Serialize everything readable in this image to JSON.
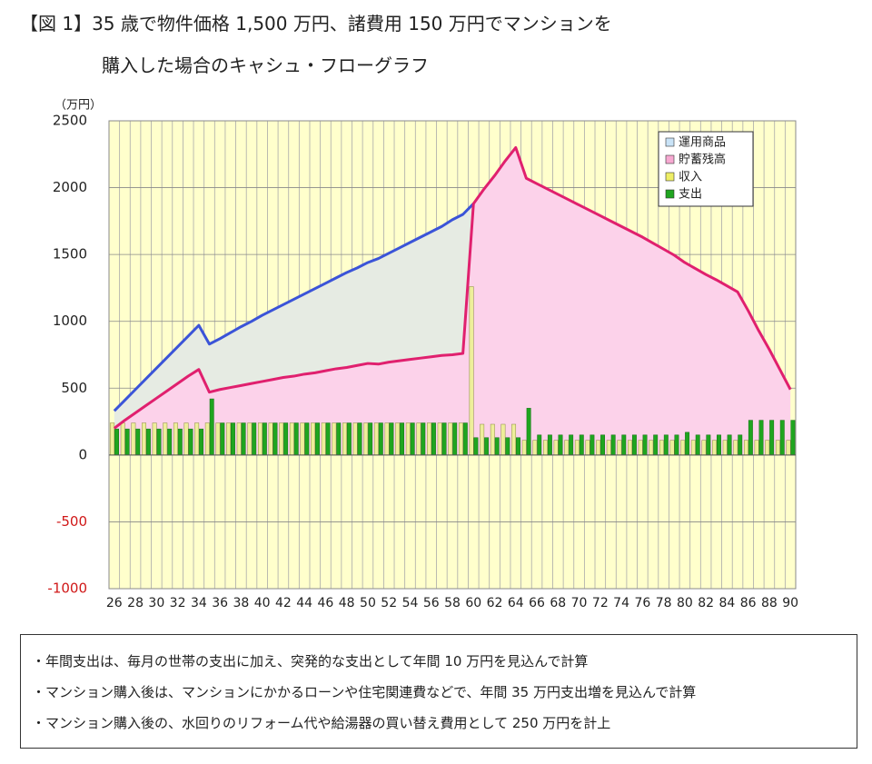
{
  "chart_data": {
    "type": "combo",
    "title": "【図 1】35 歳で物件価格 1,500 万円、諸費用 150 万円でマンションを",
    "subtitle": "購入した場合のキャシュ・フローグラフ",
    "y_label": "（万円）",
    "categories": [
      26,
      null,
      28,
      null,
      30,
      null,
      32,
      null,
      34,
      null,
      36,
      null,
      38,
      null,
      40,
      null,
      42,
      null,
      44,
      null,
      46,
      null,
      48,
      null,
      50,
      null,
      52,
      null,
      54,
      null,
      56,
      null,
      58,
      null,
      60,
      null,
      62,
      null,
      64,
      null,
      66,
      null,
      68,
      null,
      70,
      null,
      72,
      null,
      74,
      null,
      76,
      null,
      78,
      null,
      80,
      null,
      82,
      null,
      84,
      null,
      86,
      null,
      88,
      null,
      90
    ],
    "series": [
      {
        "name": "運用商品",
        "type": "line",
        "color": "#3b54d8",
        "fill": "#e6ebe3",
        "legend_color": "#c9e3f7",
        "values": [
          330,
          410,
          490,
          570,
          650,
          730,
          810,
          890,
          970,
          830,
          870,
          915,
          960,
          1000,
          1045,
          1085,
          1125,
          1165,
          1205,
          1245,
          1285,
          1325,
          1365,
          1400,
          1440,
          1470,
          1510,
          1550,
          1590,
          1630,
          1670,
          1710,
          1760,
          1800,
          1880,
          null,
          null,
          null,
          null,
          null,
          null,
          null,
          null,
          null,
          null,
          null,
          null,
          null,
          null,
          null,
          null,
          null,
          null,
          null,
          null,
          null,
          null,
          null,
          null,
          null,
          null,
          null,
          null,
          null,
          null
        ]
      },
      {
        "name": "貯蓄残高",
        "type": "line",
        "color": "#e0206e",
        "fill": "#fcd2ea",
        "legend_color": "#f7a9d2",
        "values": [
          200,
          260,
          315,
          370,
          425,
          480,
          535,
          590,
          640,
          470,
          490,
          505,
          520,
          535,
          550,
          565,
          580,
          590,
          605,
          615,
          630,
          645,
          655,
          670,
          685,
          680,
          695,
          705,
          715,
          725,
          735,
          745,
          750,
          760,
          1880,
          1990,
          2090,
          2200,
          2300,
          2070,
          2030,
          1990,
          1950,
          1910,
          1870,
          1830,
          1790,
          1750,
          1710,
          1670,
          1630,
          1585,
          1540,
          1495,
          1440,
          1395,
          1350,
          1310,
          1265,
          1220,
          1080,
          930,
          790,
          640,
          490
        ]
      },
      {
        "name": "収入",
        "type": "bar",
        "color": "#eeee9a",
        "legend_color": "#eeee66",
        "values": [
          240,
          240,
          240,
          240,
          240,
          240,
          240,
          240,
          240,
          240,
          240,
          240,
          240,
          240,
          240,
          240,
          240,
          240,
          240,
          240,
          240,
          240,
          240,
          240,
          240,
          240,
          240,
          240,
          240,
          240,
          240,
          240,
          240,
          240,
          1260,
          230,
          230,
          230,
          230,
          110,
          110,
          110,
          110,
          110,
          110,
          110,
          110,
          110,
          110,
          110,
          110,
          110,
          110,
          110,
          110,
          110,
          110,
          110,
          110,
          110,
          110,
          110,
          110,
          110,
          110
        ]
      },
      {
        "name": "支出",
        "type": "bar",
        "color": "#1fa51f",
        "legend_color": "#1fa51f",
        "values": [
          195,
          195,
          195,
          195,
          195,
          195,
          195,
          195,
          195,
          420,
          240,
          240,
          240,
          240,
          240,
          240,
          240,
          240,
          240,
          240,
          240,
          240,
          240,
          240,
          240,
          240,
          240,
          240,
          240,
          240,
          240,
          240,
          240,
          240,
          130,
          130,
          130,
          130,
          130,
          350,
          150,
          150,
          150,
          150,
          150,
          150,
          150,
          150,
          150,
          150,
          150,
          150,
          150,
          150,
          170,
          150,
          150,
          150,
          150,
          150,
          260,
          260,
          260,
          260,
          260
        ]
      }
    ],
    "ylim": [
      -1000,
      2500
    ],
    "yticks": [
      -1000,
      -500,
      0,
      500,
      1000,
      1500,
      2000,
      2500
    ],
    "negative_tick_color": "#d01818",
    "plot_background": "#ffffcc",
    "grid": true,
    "legend_position": "upper right"
  },
  "notes": [
    "・年間支出は、毎月の世帯の支出に加え、突発的な支出として年間 10 万円を見込んで計算",
    "・マンション購入後は、マンションにかかるローンや住宅関連費などで、年間 35 万円支出増を見込んで計算",
    "・マンション購入後の、水回りのリフォーム代や給湯器の買い替え費用として 250 万円を計上"
  ]
}
